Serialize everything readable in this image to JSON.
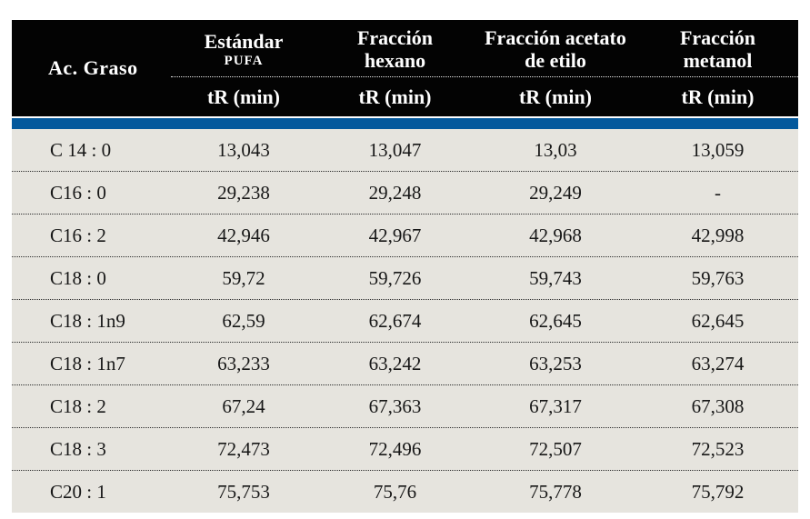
{
  "table": {
    "row_header_label": "Ac. Graso",
    "columns": [
      {
        "line1": "Estándar",
        "line2": "PUFA",
        "unit": "tR (min)"
      },
      {
        "line1": "Fracción",
        "line2": "hexano",
        "unit": "tR (min)"
      },
      {
        "line1": "Fracción acetato",
        "line2": "de etilo",
        "unit": "tR (min)"
      },
      {
        "line1": "Fracción",
        "line2": "metanol",
        "unit": "tR (min)"
      }
    ],
    "rows": [
      {
        "label": "C 14 : 0",
        "values": [
          "13,043",
          "13,047",
          "13,03",
          "13,059"
        ]
      },
      {
        "label": "C16 : 0",
        "values": [
          "29,238",
          "29,248",
          "29,249",
          "-"
        ]
      },
      {
        "label": "C16 : 2",
        "values": [
          "42,946",
          "42,967",
          "42,968",
          "42,998"
        ]
      },
      {
        "label": "C18 : 0",
        "values": [
          "59,72",
          "59,726",
          "59,743",
          "59,763"
        ]
      },
      {
        "label": "C18 : 1n9",
        "values": [
          "62,59",
          "62,674",
          "62,645",
          "62,645"
        ]
      },
      {
        "label": "C18 : 1n7",
        "values": [
          "63,233",
          "63,242",
          "63,253",
          "63,274"
        ]
      },
      {
        "label": "C18 : 2",
        "values": [
          "67,24",
          "67,363",
          "67,317",
          "67,308"
        ]
      },
      {
        "label": "C18 : 3",
        "values": [
          "72,473",
          "72,496",
          "72,507",
          "72,523"
        ]
      },
      {
        "label": "C20 : 1",
        "values": [
          "75,753",
          "75,76",
          "75,778",
          "75,792"
        ]
      }
    ],
    "colors": {
      "header_bg": "#030303",
      "accent_bar": "#04599c",
      "body_bg": "#e6e4de",
      "header_text": "#ffffff",
      "body_text": "#171717"
    }
  }
}
